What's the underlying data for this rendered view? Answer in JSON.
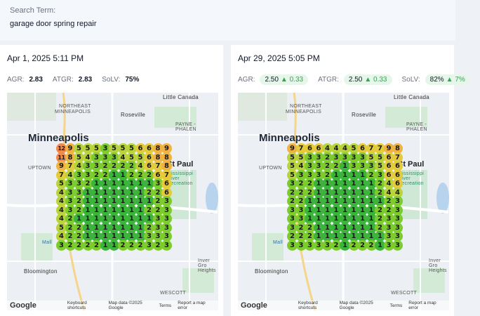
{
  "search": {
    "label": "Search Term:",
    "term": "garage door spring repair"
  },
  "panels": [
    {
      "date": "Apr 1, 2025 5:11 PM",
      "metrics": {
        "agr_label": "AGR:",
        "agr_value": "2.83",
        "atgr_label": "ATGR:",
        "atgr_value": "2.83",
        "solv_label": "SoLV:",
        "solv_value": "75%"
      },
      "grid": [
        "12 9 5 5 5 3 5 5 5 6 6 8 9",
        "11 8 5 4 3 3 3 4 5 5 6 8 8",
        "9 7 4 3 3 2 2 2 2 4 6 7 8",
        "7 4 3 3 2 2 1 1 2 2 2 6 7",
        "5 3 3 2 1 1 1 1 1 1 1 3 6",
        "4 3 3 1 1 1 1 1 1 1 2 2 6",
        "4 3 2 1 1 1 1 1 1 1 1 2 3",
        "4 3 2 1 1 1 1 1 1 1 2 2 3",
        "4 2 1 1 1 1 1 1 1 1 1 3 3",
        "5 2 2 1 1 1 1 1 1 1 2 3 3",
        "4 2 2 1 1 1 1 1 1 1 3 3 3",
        "3 2 2 2 2 1 1 2 2 2 3 2 3"
      ]
    },
    {
      "date": "Apr 29, 2025 5:05 PM",
      "metrics": {
        "agr_label": "AGR:",
        "agr_value": "2.50",
        "agr_delta": "▲ 0.33",
        "atgr_label": "ATGR:",
        "atgr_value": "2.50",
        "atgr_delta": "▲ 0.33",
        "solv_label": "SoLV:",
        "solv_value": "82%",
        "solv_delta": "▲ 7%"
      },
      "grid": [
        "9 7 6 6 4 4 4 5 6 7 7 9 8",
        "5 5 3 3 2 3 3 3 3 5 5 6 7",
        "5 4 3 3 2 2 1 3 3 3 5 6 6",
        "5 3 3 3 2 1 1 1 1 2 3 6 6",
        "3 2 2 1 1 1 1 1 1 1 2 4 6",
        "2 2 2 1 1 1 1 1 1 1 2 4 4",
        "2 2 1 1 1 1 1 1 1 1 1 2 3",
        "3 3 1 1 1 1 1 1 1 1 2 2 3",
        "3 3 1 1 1 1 1 1 1 1 2 3 3",
        "3 2 2 1 1 1 1 1 1 1 2 3 3",
        "2 2 2 1 1 1 1 1 1 1 1 3 3",
        "3 3 3 3 3 2 1 2 2 2 1 3 3"
      ]
    }
  ],
  "map": {
    "labels": {
      "little_canada": "Little Canada",
      "northeast": "NORTHEAST",
      "minneapolis_upper": "MINNEAPOLIS",
      "roseville": "Roseville",
      "paynes": "PAYNE - PHALEN",
      "city": "Minneapolis",
      "st_paul": "St Paul",
      "uptown": "UPTOWN",
      "mississippi": "Mississippi River Recreation",
      "mall": "Mall",
      "inver": "Inver Gro Heights",
      "bloomington": "Bloomington",
      "wescott": "WESCOTT"
    },
    "footer": {
      "google": "Google",
      "shortcuts": "Keyboard shortcuts",
      "mapdata": "Map data ©2025 Google",
      "terms": "Terms",
      "report": "Report a map error"
    }
  }
}
